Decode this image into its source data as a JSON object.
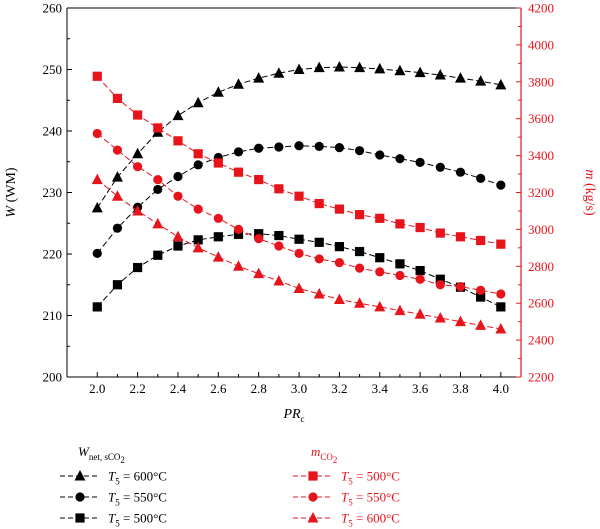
{
  "chart_data": {
    "type": "line",
    "x": [
      2.0,
      2.1,
      2.2,
      2.3,
      2.4,
      2.5,
      2.6,
      2.7,
      2.8,
      2.9,
      3.0,
      3.1,
      3.2,
      3.3,
      3.4,
      3.5,
      3.6,
      3.7,
      3.8,
      3.9,
      4.0
    ],
    "xlabel": {
      "main": "PR",
      "sub": "c"
    },
    "xlim": [
      1.85,
      4.1
    ],
    "xticks": [
      "2.0",
      "2.2",
      "2.4",
      "2.6",
      "2.8",
      "3.0",
      "3.2",
      "3.4",
      "3.6",
      "3.8",
      "4.0"
    ],
    "y_left": {
      "label_italic": "W",
      "label_rest": " (WM)",
      "ylim": [
        200,
        260
      ],
      "ticks": [
        "200",
        "210",
        "220",
        "230",
        "240",
        "250",
        "260"
      ],
      "color": "#000000"
    },
    "y_right": {
      "label_italic": "m",
      "label_rest": " (kg/s)",
      "ylim": [
        2200,
        4200
      ],
      "ticks": [
        "2200",
        "2400",
        "2600",
        "2800",
        "3000",
        "3200",
        "3400",
        "3600",
        "3800",
        "4000",
        "4200"
      ],
      "color": "#e8141c"
    },
    "series": [
      {
        "legend": "W",
        "axis": "left",
        "marker": "triangle",
        "color": "#000000",
        "values": [
          227.5,
          232.5,
          236.3,
          239.8,
          242.5,
          244.6,
          246.3,
          247.6,
          248.6,
          249.4,
          250.0,
          250.3,
          250.4,
          250.3,
          250.1,
          249.8,
          249.5,
          249.1,
          248.6,
          248.1,
          247.5
        ]
      },
      {
        "legend": "W",
        "axis": "left",
        "marker": "circle",
        "color": "#000000",
        "values": [
          220.1,
          224.2,
          227.6,
          230.5,
          232.6,
          234.5,
          235.7,
          236.6,
          237.2,
          237.4,
          237.6,
          237.5,
          237.3,
          236.8,
          236.1,
          235.5,
          234.9,
          234.1,
          233.3,
          232.3,
          231.2
        ]
      },
      {
        "legend": "W",
        "axis": "left",
        "marker": "square",
        "color": "#000000",
        "values": [
          211.4,
          215.0,
          217.8,
          219.8,
          221.3,
          222.3,
          222.8,
          223.2,
          223.3,
          223.0,
          222.4,
          221.9,
          221.2,
          220.4,
          219.4,
          218.4,
          217.3,
          215.9,
          214.6,
          213.0,
          211.4
        ]
      },
      {
        "legend": "m",
        "axis": "right",
        "marker": "square",
        "color": "#e8141c",
        "values": [
          3830,
          3710,
          3620,
          3550,
          3480,
          3410,
          3360,
          3310,
          3270,
          3220,
          3180,
          3140,
          3110,
          3080,
          3060,
          3030,
          3010,
          2980,
          2960,
          2940,
          2920
        ]
      },
      {
        "legend": "m",
        "axis": "right",
        "marker": "circle",
        "color": "#e8141c",
        "values": [
          3520,
          3430,
          3340,
          3270,
          3180,
          3110,
          3060,
          3000,
          2950,
          2910,
          2870,
          2840,
          2820,
          2790,
          2770,
          2750,
          2730,
          2700,
          2690,
          2670,
          2650
        ]
      },
      {
        "legend": "m",
        "axis": "right",
        "marker": "triangle",
        "color": "#e8141c",
        "values": [
          3270,
          3180,
          3100,
          3030,
          2960,
          2900,
          2850,
          2800,
          2760,
          2720,
          2680,
          2650,
          2620,
          2600,
          2580,
          2560,
          2540,
          2520,
          2500,
          2480,
          2460
        ]
      }
    ],
    "legend_left": {
      "title": {
        "main": "W",
        "sub": "net, sCO",
        "sub2": "2"
      },
      "entries": [
        {
          "label_var": "T",
          "label_sub": "5",
          "label_rest": " = 600°C",
          "marker": "triangle"
        },
        {
          "label_var": "T",
          "label_sub": "5",
          "label_rest": " = 550°C",
          "marker": "circle"
        },
        {
          "label_var": "T",
          "label_sub": "5",
          "label_rest": " = 500°C",
          "marker": "square"
        }
      ]
    },
    "legend_right": {
      "title": {
        "main": "m",
        "sub": "CO",
        "sub2": "2"
      },
      "entries": [
        {
          "label_var": "T",
          "label_sub": "5",
          "label_rest": " = 500°C",
          "marker": "square"
        },
        {
          "label_var": "T",
          "label_sub": "5",
          "label_rest": " = 550°C",
          "marker": "circle"
        },
        {
          "label_var": "T",
          "label_sub": "5",
          "label_rest": " = 600°C",
          "marker": "triangle"
        }
      ]
    }
  }
}
